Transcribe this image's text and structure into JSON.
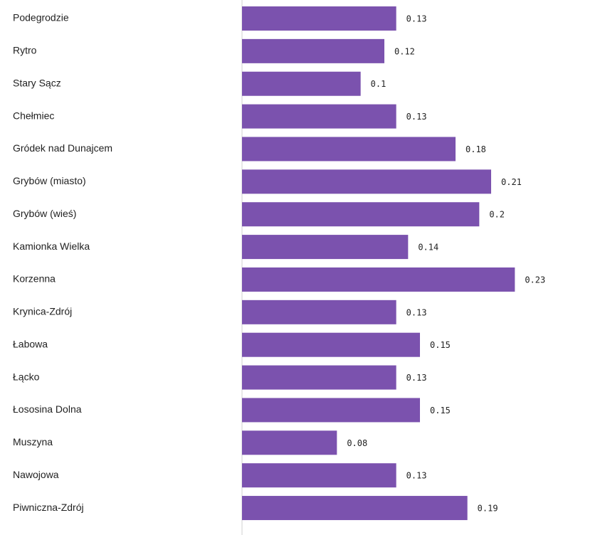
{
  "chart_data": {
    "type": "bar",
    "orientation": "horizontal",
    "color": "#7b52ae",
    "categories": [
      "Podegrodzie",
      "Rytro",
      "Stary Sącz",
      "Chełmiec",
      "Gródek nad Dunajcem",
      "Grybów (miasto)",
      "Grybów (wieś)",
      "Kamionka Wielka",
      "Korzenna",
      "Krynica-Zdrój",
      "Łabowa",
      "Łącko",
      "Łososina Dolna",
      "Muszyna",
      "Nawojowa",
      "Piwniczna-Zdrój"
    ],
    "values": [
      0.13,
      0.12,
      0.1,
      0.13,
      0.18,
      0.21,
      0.2,
      0.14,
      0.23,
      0.13,
      0.15,
      0.13,
      0.15,
      0.08,
      0.13,
      0.19
    ],
    "xlim": [
      0,
      0.3
    ]
  }
}
